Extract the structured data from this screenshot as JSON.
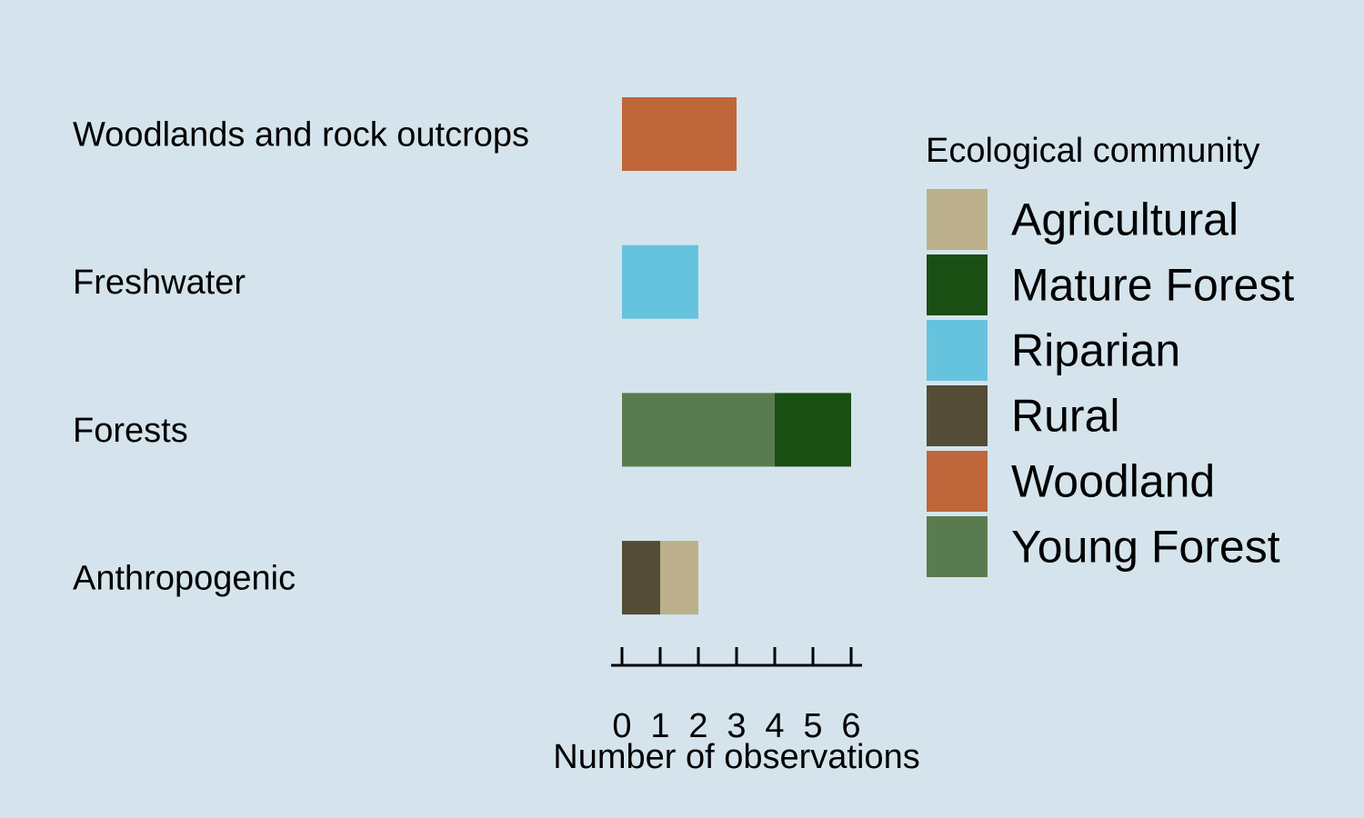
{
  "chart_data": {
    "type": "bar",
    "orientation": "horizontal",
    "stacked": true,
    "title": "",
    "xlabel": "Number of observations",
    "ylabel": "",
    "xlim": [
      0,
      6
    ],
    "grid": false,
    "legend_position": "right",
    "categories": [
      "Woodlands and rock outcrops",
      "Freshwater",
      "Forests",
      "Anthropogenic"
    ],
    "x_ticks": [
      "0",
      "1",
      "2",
      "3",
      "4",
      "5",
      "6"
    ],
    "legend_title": "Ecological community",
    "series": [
      {
        "name": "Agricultural",
        "color": "#bbb08b",
        "values": [
          0,
          0,
          0,
          1
        ]
      },
      {
        "name": "Mature Forest",
        "color": "#1a4e13",
        "values": [
          0,
          0,
          2,
          0
        ]
      },
      {
        "name": "Riparian",
        "color": "#66c3dd",
        "values": [
          0,
          2,
          0,
          0
        ]
      },
      {
        "name": "Rural",
        "color": "#544c37",
        "values": [
          0,
          0,
          0,
          1
        ]
      },
      {
        "name": "Woodland",
        "color": "#bf663a",
        "values": [
          3,
          0,
          0,
          0
        ]
      },
      {
        "name": "Young Forest",
        "color": "#5a7b4f",
        "values": [
          0,
          0,
          4,
          0
        ]
      }
    ],
    "stack_order": [
      "Rural",
      "Agricultural",
      "Riparian",
      "Young Forest",
      "Mature Forest",
      "Woodland"
    ]
  }
}
